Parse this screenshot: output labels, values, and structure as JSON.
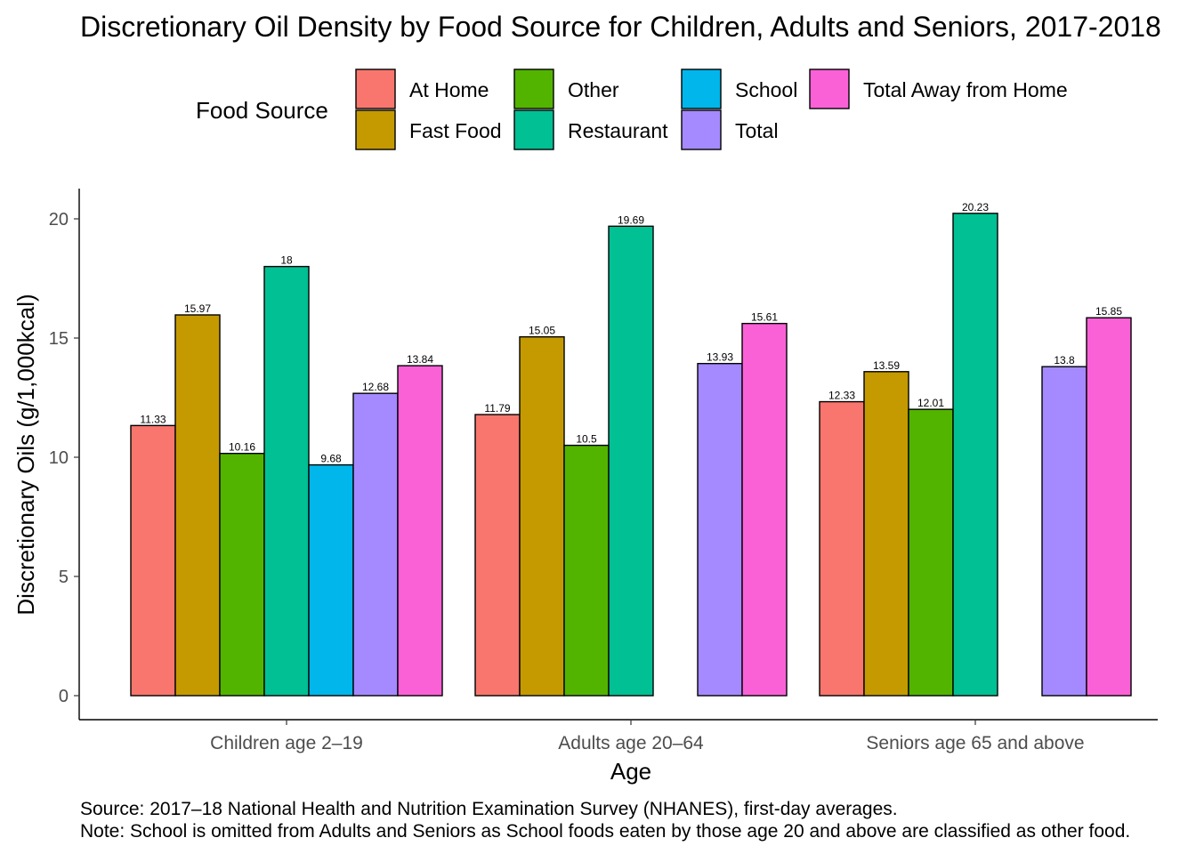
{
  "chart_data": {
    "type": "bar",
    "title": "Discretionary Oil Density by Food Source for Children, Adults and Seniors, 2017-2018",
    "xlabel": "Age",
    "ylabel": "Discretionary Oils (g/1,000kcal)",
    "ylim": [
      0,
      21.2
    ],
    "yticks": [
      0,
      5,
      10,
      15,
      20
    ],
    "grid": false,
    "legend": {
      "title": "Food Source",
      "position": "top",
      "entries": [
        {
          "name": "At Home",
          "color": "#F8766D"
        },
        {
          "name": "Fast Food",
          "color": "#C49A00"
        },
        {
          "name": "Other",
          "color": "#53B400"
        },
        {
          "name": "Restaurant",
          "color": "#00C094"
        },
        {
          "name": "School",
          "color": "#00B6EB"
        },
        {
          "name": "Total",
          "color": "#A58AFF"
        },
        {
          "name": "Total Away from Home",
          "color": "#FB61D7"
        }
      ]
    },
    "categories": [
      "Children age 2–19",
      "Adults age 20–64",
      "Seniors age 65 and above"
    ],
    "series": [
      {
        "name": "At Home",
        "color": "#F8766D",
        "values": [
          11.33,
          11.79,
          12.33
        ],
        "labels": [
          "11.33",
          "11.79",
          "12.33"
        ]
      },
      {
        "name": "Fast Food",
        "color": "#C49A00",
        "values": [
          15.97,
          15.05,
          13.59
        ],
        "labels": [
          "15.97",
          "15.05",
          "13.59"
        ]
      },
      {
        "name": "Other",
        "color": "#53B400",
        "values": [
          10.16,
          10.5,
          12.01
        ],
        "labels": [
          "10.16",
          "10.5",
          "12.01"
        ]
      },
      {
        "name": "Restaurant",
        "color": "#00C094",
        "values": [
          18,
          19.69,
          20.23
        ],
        "labels": [
          "18",
          "19.69",
          "20.23"
        ]
      },
      {
        "name": "School",
        "color": "#00B6EB",
        "values": [
          9.68,
          null,
          null
        ],
        "labels": [
          "9.68",
          "",
          ""
        ]
      },
      {
        "name": "Total",
        "color": "#A58AFF",
        "values": [
          12.68,
          13.93,
          13.8
        ],
        "labels": [
          "12.68",
          "13.93",
          "13.8"
        ]
      },
      {
        "name": "Total Away from Home",
        "color": "#FB61D7",
        "values": [
          13.84,
          15.61,
          15.85
        ],
        "labels": [
          "13.84",
          "15.61",
          "15.85"
        ]
      }
    ],
    "captions": [
      "Source: 2017–18 National Health and Nutrition Examination Survey (NHANES), first-day averages.",
      "Note: School is omitted from Adults and Seniors as School foods eaten by those age 20 and above are classified as other food."
    ]
  }
}
